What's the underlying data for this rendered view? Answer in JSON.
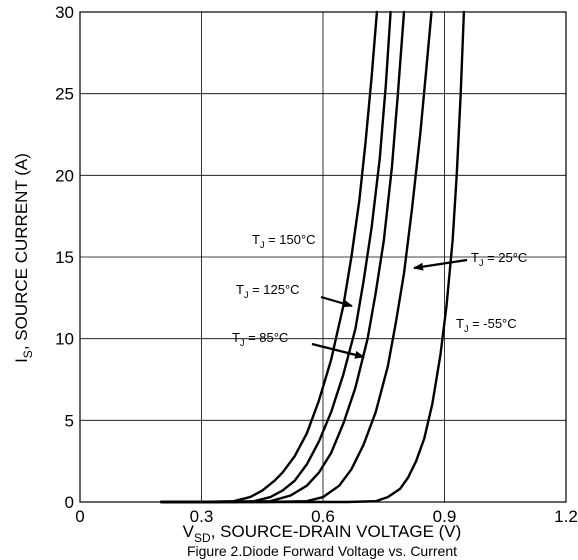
{
  "chart_data": {
    "type": "line",
    "xlabel_main": "V",
    "xlabel_sub": "SD",
    "xlabel_rest": ", SOURCE-DRAIN VOLTAGE (V)",
    "ylabel_main": "I",
    "ylabel_sub": "S",
    "ylabel_rest": ", SOURCE CURRENT (A)",
    "caption": "Figure 2.Diode Forward Voltage vs. Current",
    "xlim": [
      0,
      1.2
    ],
    "ylim": [
      0,
      30
    ],
    "x_ticks": [
      "0",
      "0.3",
      "0.6",
      "0.9",
      "1.2"
    ],
    "y_ticks": [
      "0",
      "5",
      "10",
      "15",
      "20",
      "25",
      "30"
    ],
    "grid": true,
    "series": [
      {
        "name": "T_J = 150°C",
        "label_main": "T",
        "label_sub": "J",
        "label_rest": " = 150°C",
        "x": [
          0.2,
          0.3,
          0.38,
          0.42,
          0.45,
          0.48,
          0.5,
          0.53,
          0.56,
          0.59,
          0.62,
          0.65,
          0.67,
          0.69,
          0.705,
          0.72,
          0.733
        ],
        "y": [
          0,
          0,
          0.05,
          0.3,
          0.7,
          1.3,
          1.8,
          2.8,
          4.2,
          6.2,
          8.7,
          12.0,
          15.0,
          18.5,
          22.0,
          26.0,
          30.0
        ]
      },
      {
        "name": "T_J = 125°C",
        "label_main": "T",
        "label_sub": "J",
        "label_rest": " = 125°C",
        "x": [
          0.2,
          0.35,
          0.43,
          0.47,
          0.5,
          0.53,
          0.56,
          0.59,
          0.62,
          0.65,
          0.68,
          0.7,
          0.72,
          0.74,
          0.755,
          0.767
        ],
        "y": [
          0,
          0,
          0.05,
          0.3,
          0.7,
          1.3,
          2.3,
          3.7,
          5.5,
          7.8,
          10.6,
          13.5,
          16.8,
          21.0,
          25.5,
          30.0
        ]
      },
      {
        "name": "T_J = 85°C",
        "label_main": "T",
        "label_sub": "J",
        "label_rest": " = 85°C",
        "x": [
          0.2,
          0.38,
          0.47,
          0.52,
          0.56,
          0.59,
          0.62,
          0.65,
          0.68,
          0.71,
          0.73,
          0.75,
          0.77,
          0.785,
          0.8
        ],
        "y": [
          0,
          0,
          0.05,
          0.4,
          1.0,
          1.8,
          3.0,
          4.8,
          7.0,
          10.0,
          12.8,
          16.0,
          20.5,
          25.0,
          30.0
        ]
      },
      {
        "name": "T_J = 25°C",
        "label_main": "T",
        "label_sub": "J",
        "label_rest": " = 25°C",
        "x": [
          0.2,
          0.46,
          0.56,
          0.6,
          0.64,
          0.67,
          0.7,
          0.73,
          0.76,
          0.78,
          0.8,
          0.82,
          0.84,
          0.855,
          0.868
        ],
        "y": [
          0,
          0,
          0.05,
          0.3,
          1.0,
          2.0,
          3.5,
          5.5,
          8.3,
          11.0,
          14.0,
          18.0,
          22.5,
          26.5,
          30.0
        ]
      },
      {
        "name": "T_J = -55°C",
        "label_main": "T",
        "label_sub": "J",
        "label_rest": " = -55°C",
        "x": [
          0.2,
          0.66,
          0.73,
          0.76,
          0.79,
          0.81,
          0.83,
          0.85,
          0.87,
          0.89,
          0.905,
          0.92,
          0.93,
          0.94,
          0.948
        ],
        "y": [
          0,
          0,
          0.05,
          0.3,
          0.8,
          1.5,
          2.5,
          3.9,
          6.0,
          9.0,
          12.0,
          16.0,
          20.0,
          25.0,
          30.0
        ]
      }
    ]
  }
}
